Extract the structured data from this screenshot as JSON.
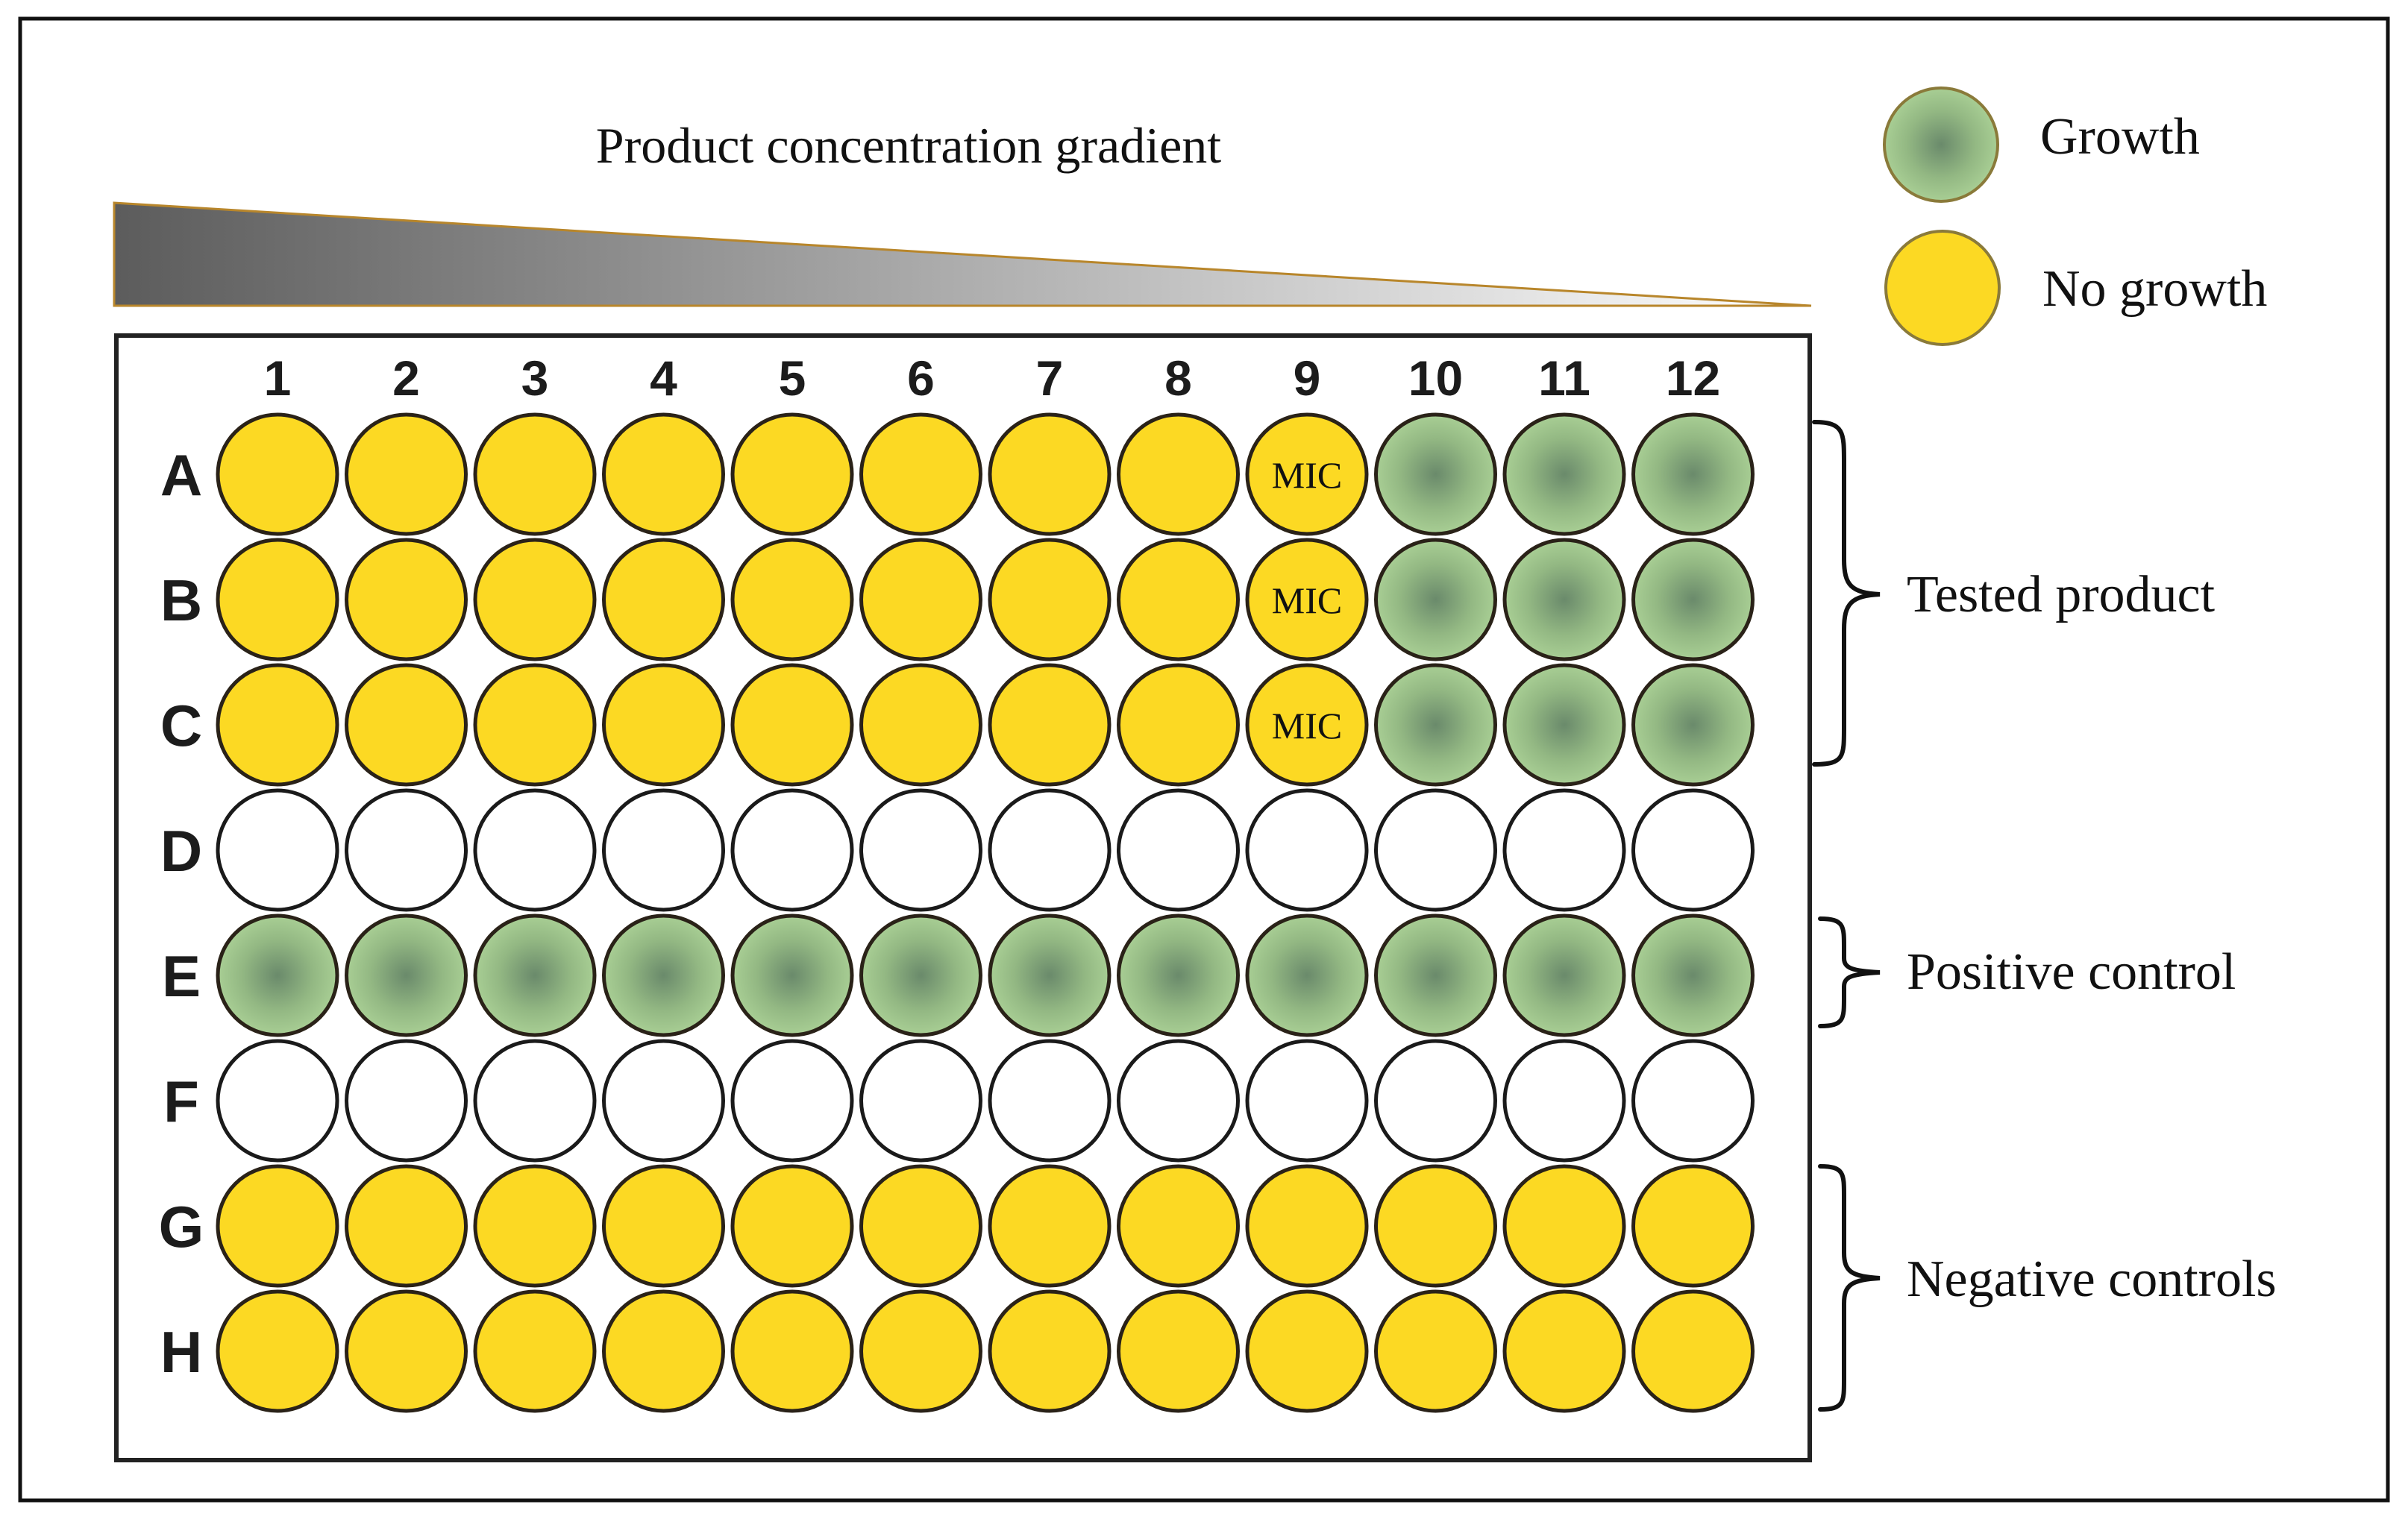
{
  "title": "Product concentration gradient",
  "columns": [
    "1",
    "2",
    "3",
    "4",
    "5",
    "6",
    "7",
    "8",
    "9",
    "10",
    "11",
    "12"
  ],
  "rows": [
    {
      "label": "A",
      "states": [
        "no",
        "no",
        "no",
        "no",
        "no",
        "no",
        "no",
        "no",
        "no",
        "growth",
        "growth",
        "growth"
      ],
      "mic_column": 9
    },
    {
      "label": "B",
      "states": [
        "no",
        "no",
        "no",
        "no",
        "no",
        "no",
        "no",
        "no",
        "no",
        "growth",
        "growth",
        "growth"
      ],
      "mic_column": 9
    },
    {
      "label": "C",
      "states": [
        "no",
        "no",
        "no",
        "no",
        "no",
        "no",
        "no",
        "no",
        "no",
        "growth",
        "growth",
        "growth"
      ],
      "mic_column": 9
    },
    {
      "label": "D",
      "states": [
        "empty",
        "empty",
        "empty",
        "empty",
        "empty",
        "empty",
        "empty",
        "empty",
        "empty",
        "empty",
        "empty",
        "empty"
      ]
    },
    {
      "label": "E",
      "states": [
        "growth",
        "growth",
        "growth",
        "growth",
        "growth",
        "growth",
        "growth",
        "growth",
        "growth",
        "growth",
        "growth",
        "growth"
      ]
    },
    {
      "label": "F",
      "states": [
        "empty",
        "empty",
        "empty",
        "empty",
        "empty",
        "empty",
        "empty",
        "empty",
        "empty",
        "empty",
        "empty",
        "empty"
      ]
    },
    {
      "label": "G",
      "states": [
        "no",
        "no",
        "no",
        "no",
        "no",
        "no",
        "no",
        "no",
        "no",
        "no",
        "no",
        "no"
      ]
    },
    {
      "label": "H",
      "states": [
        "no",
        "no",
        "no",
        "no",
        "no",
        "no",
        "no",
        "no",
        "no",
        "no",
        "no",
        "no"
      ]
    }
  ],
  "mic_label": "MIC",
  "legend": {
    "growth": "Growth",
    "no_growth": "No growth"
  },
  "groups": {
    "tested": "Tested product",
    "positive": "Positive control",
    "negative": "Negative controls"
  },
  "colors": {
    "no_growth_fill": "#fcd923",
    "growth_center": "#6a8a6b",
    "growth_edge": "#a8ce94",
    "gradient_dark": "#5c5c5c",
    "gradient_light": "#ffffff",
    "gradient_edge": "#b8862b"
  }
}
